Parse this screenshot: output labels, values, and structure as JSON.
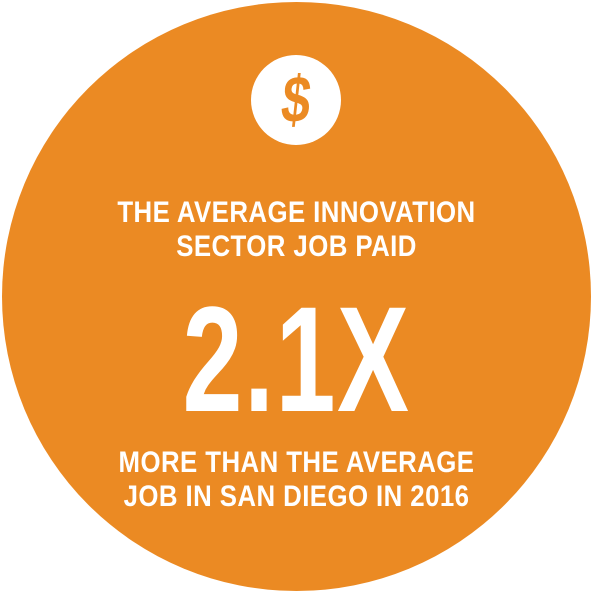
{
  "colors": {
    "circle_fill": "#EB8A23",
    "text": "#FFFFFF",
    "icon_bg": "#FFFFFF",
    "icon_glyph": "#EB8A23"
  },
  "icon": {
    "name": "dollar-sign-icon",
    "glyph": "$"
  },
  "headline": {
    "line1": "THE AVERAGE INNOVATION",
    "line2": "SECTOR JOB PAID"
  },
  "stat": {
    "value": "2.1X"
  },
  "subline": {
    "line1": "MORE THAN THE AVERAGE",
    "line2": "JOB IN SAN DIEGO IN 2016"
  }
}
